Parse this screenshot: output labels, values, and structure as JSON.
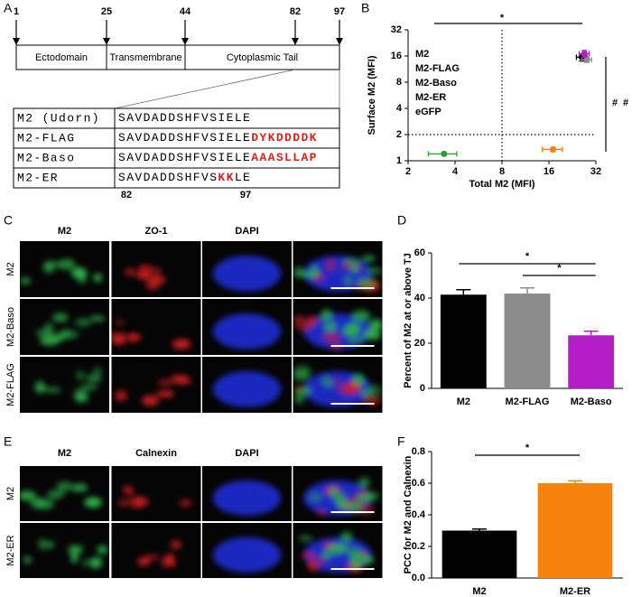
{
  "panel_labels": [
    "A",
    "B",
    "C",
    "D",
    "E",
    "F"
  ],
  "diagram": {
    "positions": [
      1,
      25,
      44,
      82,
      97
    ],
    "domains": [
      "Ectodomain",
      "Transmembrane",
      "Cytoplasmic Tail"
    ],
    "highlight_color": "#e0201b",
    "alignment": [
      {
        "name": "M2 (Udorn)",
        "sequence": [
          {
            "text": "SAVDADDSHFVSIELE"
          }
        ]
      },
      {
        "name": "M2-FLAG",
        "sequence": [
          {
            "text": "SAVDADDSHFVSIELE"
          },
          {
            "text": "DYKDDDDK",
            "highlight": true
          }
        ]
      },
      {
        "name": "M2-Baso",
        "sequence": [
          {
            "text": "SAVDADDSHFVSIELE"
          },
          {
            "text": "AAASLLAP",
            "highlight": true
          }
        ]
      },
      {
        "name": "M2-ER",
        "sequence": [
          {
            "text": "SAVDADDSHFVS"
          },
          {
            "text": "KK",
            "highlight": true
          },
          {
            "text": "LE"
          }
        ]
      }
    ],
    "bottom_positions": [
      82,
      97
    ]
  },
  "micrographs": [
    {
      "channels": [
        "M2",
        "ZO-1",
        "DAPI"
      ],
      "channel_colors": [
        "#2db34a",
        "#d81e1e",
        "#1f2fe0"
      ],
      "rows": [
        "M2",
        "M2-Baso",
        "M2-FLAG"
      ]
    },
    {
      "channels": [
        "M2",
        "Calnexin",
        "DAPI"
      ],
      "channel_colors": [
        "#2db34a",
        "#d81e1e",
        "#1f2fe0"
      ],
      "rows": [
        "M2",
        "M2-ER"
      ]
    }
  ],
  "chart_data": [
    {
      "type": "scatter",
      "xlabel": "Total M2 (MFI)",
      "ylabel": "Surface M2 (MFI)",
      "xscale": "log2",
      "yscale": "log2",
      "xlim": [
        2,
        32
      ],
      "ylim": [
        1,
        32
      ],
      "xticks": [
        2,
        4,
        8,
        16,
        32
      ],
      "yticks": [
        1,
        2,
        4,
        8,
        16,
        32
      ],
      "vlines": [
        8
      ],
      "hlines": [
        2
      ],
      "legend": "upper left",
      "series": [
        {
          "name": "M2",
          "color": "#000000",
          "x": [
            26
          ],
          "y": [
            15.5
          ],
          "xerr": [
            2
          ],
          "yerr": [
            1.5
          ]
        },
        {
          "name": "M2-FLAG",
          "color": "#8c8c8c",
          "x": [
            28
          ],
          "y": [
            14.5
          ],
          "xerr": [
            2
          ],
          "yerr": [
            1
          ]
        },
        {
          "name": "M2-Baso",
          "color": "#b41ec8",
          "x": [
            27
          ],
          "y": [
            17
          ],
          "xerr": [
            2
          ],
          "yerr": [
            1.5
          ]
        },
        {
          "name": "M2-ER",
          "color": "#f07f13",
          "x": [
            17
          ],
          "y": [
            1.35
          ],
          "xerr": [
            2.5
          ],
          "yerr": [
            0.08
          ]
        },
        {
          "name": "eGFP",
          "color": "#2ca02c",
          "x": [
            3.4
          ],
          "y": [
            1.2
          ],
          "xerr": [
            0.7
          ],
          "yerr": [
            0.05
          ]
        }
      ],
      "annotations": [
        {
          "text": "*",
          "color": "#2ca02c"
        },
        {
          "text": "#",
          "color": "#2ca02c"
        },
        {
          "text": "#",
          "color": "#f07f13"
        }
      ]
    },
    {
      "type": "bar",
      "ylabel": "Percent of M2 at or above TJ",
      "categories": [
        "M2",
        "M2-FLAG",
        "M2-Baso"
      ],
      "values": [
        41.5,
        42,
        23.5
      ],
      "errors": [
        2.2,
        2.5,
        1.8
      ],
      "colors": [
        "#000000",
        "#8c8c8c",
        "#b41ec8"
      ],
      "ylim": [
        0,
        60
      ],
      "yticks": [
        0,
        20,
        40,
        60
      ],
      "annotations": [
        "*",
        "*"
      ]
    },
    {
      "type": "bar",
      "ylabel": "PCC for M2 and Calnexin",
      "categories": [
        "M2",
        "M2-ER"
      ],
      "values": [
        0.3,
        0.6
      ],
      "errors": [
        0.01,
        0.015
      ],
      "colors": [
        "#000000",
        "#f7830f"
      ],
      "ylim": [
        0,
        0.8
      ],
      "yticks": [
        {
          "value": 0,
          "label": "0.0"
        },
        0.2,
        0.4,
        0.6,
        0.8
      ],
      "annotations": [
        "*"
      ]
    }
  ]
}
